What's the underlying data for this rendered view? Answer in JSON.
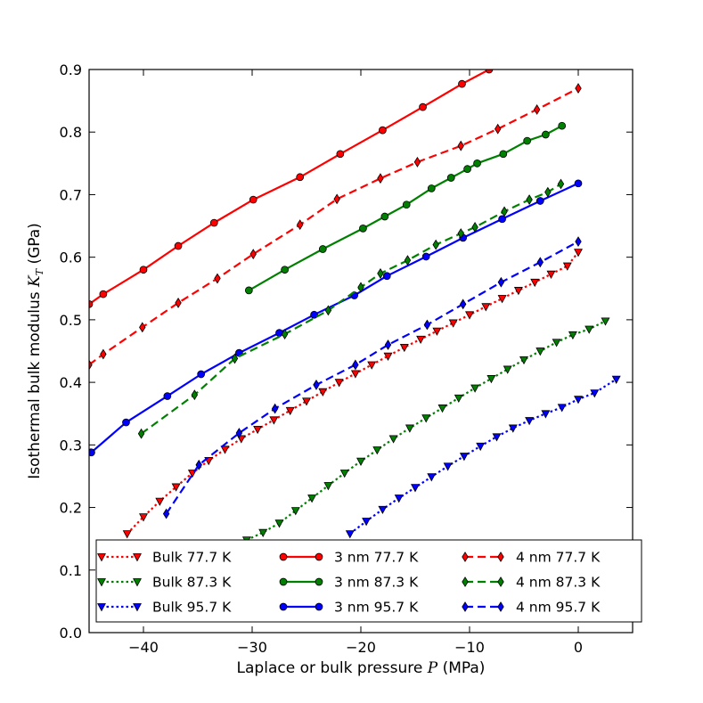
{
  "chart_data": {
    "type": "line",
    "xlabel": "Laplace or bulk pressure P (MPa)",
    "ylabel": "Isothermal bulk modulus K_T (GPa)",
    "xlabel_parts": {
      "pre": "Laplace or bulk pressure ",
      "sym": "P",
      "post": " (MPa)"
    },
    "ylabel_parts": {
      "pre": "Isothermal bulk modulus ",
      "sym": "K",
      "sub": "T",
      "post": " (GPa)"
    },
    "xlim": [
      -45,
      5
    ],
    "ylim": [
      0.0,
      0.9
    ],
    "xticks": [
      -40,
      -30,
      -20,
      -10,
      0
    ],
    "yticks": [
      0.0,
      0.1,
      0.2,
      0.3,
      0.4,
      0.5,
      0.6,
      0.7,
      0.8,
      0.9
    ],
    "xtick_labels": [
      "−40",
      "−30",
      "−20",
      "−10",
      "0"
    ],
    "ytick_labels": [
      "0.0",
      "0.1",
      "0.2",
      "0.3",
      "0.4",
      "0.5",
      "0.6",
      "0.7",
      "0.8",
      "0.9"
    ],
    "grid": false,
    "legend_position": "lower-center",
    "series": [
      {
        "name": "Bulk 77.7 K",
        "color": "#ff0000",
        "linestyle": "dotted",
        "marker": "triangle-down",
        "x": [
          -41.5,
          -40,
          -38.5,
          -37,
          -35.5,
          -34,
          -32.5,
          -31,
          -29.5,
          -28,
          -26.5,
          -25,
          -23.5,
          -22,
          -20.5,
          -19,
          -17.5,
          -16,
          -14.5,
          -13,
          -11.5,
          -10,
          -8.5,
          -7,
          -5.5,
          -4,
          -2.5,
          -1,
          0
        ],
        "y": [
          0.158,
          0.185,
          0.21,
          0.233,
          0.255,
          0.275,
          0.293,
          0.31,
          0.325,
          0.34,
          0.355,
          0.37,
          0.385,
          0.4,
          0.414,
          0.428,
          0.442,
          0.456,
          0.469,
          0.482,
          0.495,
          0.508,
          0.521,
          0.534,
          0.547,
          0.56,
          0.573,
          0.586,
          0.608
        ]
      },
      {
        "name": "Bulk 87.3 K",
        "color": "#008000",
        "linestyle": "dotted",
        "marker": "triangle-down",
        "x": [
          -30.5,
          -29,
          -27.5,
          -26,
          -24.5,
          -23,
          -21.5,
          -20,
          -18.5,
          -17,
          -15.5,
          -14,
          -12.5,
          -11,
          -9.5,
          -8,
          -6.5,
          -5,
          -3.5,
          -2,
          -0.5,
          1,
          2.5
        ],
        "y": [
          0.148,
          0.16,
          0.175,
          0.195,
          0.215,
          0.235,
          0.255,
          0.274,
          0.292,
          0.31,
          0.327,
          0.343,
          0.359,
          0.375,
          0.391,
          0.406,
          0.421,
          0.436,
          0.45,
          0.464,
          0.476,
          0.485,
          0.498
        ]
      },
      {
        "name": "Bulk 95.7 K",
        "color": "#0000ff",
        "linestyle": "dotted",
        "marker": "triangle-down",
        "x": [
          -21,
          -19.5,
          -18,
          -16.5,
          -15,
          -13.5,
          -12,
          -10.5,
          -9,
          -7.5,
          -6,
          -4.5,
          -3,
          -1.5,
          0,
          1.5,
          3.5
        ],
        "y": [
          0.158,
          0.178,
          0.197,
          0.215,
          0.232,
          0.249,
          0.266,
          0.282,
          0.298,
          0.313,
          0.327,
          0.339,
          0.35,
          0.36,
          0.373,
          0.383,
          0.405
        ]
      },
      {
        "name": "3 nm 77.7 K",
        "color": "#ff0000",
        "linestyle": "solid",
        "marker": "circle",
        "x": [
          -45,
          -43.7,
          -40,
          -36.8,
          -33.5,
          -29.9,
          -25.6,
          -21.9,
          -18,
          -14.3,
          -10.7,
          -8.2
        ],
        "y": [
          0.525,
          0.541,
          0.58,
          0.618,
          0.655,
          0.692,
          0.728,
          0.765,
          0.803,
          0.84,
          0.877,
          0.9
        ]
      },
      {
        "name": "3 nm 87.3 K",
        "color": "#008000",
        "linestyle": "solid",
        "marker": "circle",
        "x": [
          -30.3,
          -27,
          -23.5,
          -19.8,
          -17.8,
          -15.8,
          -13.5,
          -11.7,
          -10.2,
          -9.3,
          -6.9,
          -4.7,
          -3,
          -1.5
        ],
        "y": [
          0.547,
          0.58,
          0.613,
          0.646,
          0.665,
          0.684,
          0.71,
          0.727,
          0.741,
          0.75,
          0.765,
          0.786,
          0.796,
          0.81
        ]
      },
      {
        "name": "3 nm 95.7 K",
        "color": "#0000ff",
        "linestyle": "solid",
        "marker": "circle",
        "x": [
          -44.8,
          -41.6,
          -37.8,
          -34.7,
          -31.2,
          -27.5,
          -24.3,
          -20.6,
          -17.6,
          -14,
          -10.6,
          -7,
          -3.5,
          0
        ],
        "y": [
          0.288,
          0.336,
          0.378,
          0.413,
          0.447,
          0.479,
          0.508,
          0.539,
          0.57,
          0.601,
          0.631,
          0.661,
          0.69,
          0.718
        ]
      },
      {
        "name": "4 nm 77.7 K",
        "color": "#ff0000",
        "linestyle": "dashed",
        "marker": "diamond",
        "x": [
          -45,
          -43.7,
          -40.1,
          -36.8,
          -33.2,
          -29.9,
          -25.6,
          -22.2,
          -18.2,
          -14.8,
          -10.8,
          -7.4,
          -3.8,
          0
        ],
        "y": [
          0.428,
          0.445,
          0.488,
          0.527,
          0.566,
          0.605,
          0.652,
          0.693,
          0.726,
          0.752,
          0.778,
          0.805,
          0.836,
          0.87
        ]
      },
      {
        "name": "4 nm 87.3 K",
        "color": "#008000",
        "linestyle": "dashed",
        "marker": "diamond",
        "x": [
          -40.2,
          -35.3,
          -31.6,
          -27,
          -23,
          -20,
          -18.2,
          -15.7,
          -13.1,
          -10.8,
          -9.5,
          -6.8,
          -4.5,
          -2.8,
          -1.6
        ],
        "y": [
          0.318,
          0.38,
          0.438,
          0.477,
          0.515,
          0.552,
          0.574,
          0.595,
          0.62,
          0.638,
          0.648,
          0.673,
          0.692,
          0.704,
          0.717
        ]
      },
      {
        "name": "4 nm 95.7 K",
        "color": "#0000ff",
        "linestyle": "dashed",
        "marker": "diamond",
        "x": [
          -37.9,
          -34.9,
          -31.2,
          -27.9,
          -24.1,
          -20.5,
          -17.5,
          -13.9,
          -10.6,
          -7.1,
          -3.5,
          0
        ],
        "y": [
          0.19,
          0.268,
          0.319,
          0.358,
          0.396,
          0.428,
          0.46,
          0.492,
          0.525,
          0.56,
          0.592,
          0.625
        ]
      }
    ]
  }
}
